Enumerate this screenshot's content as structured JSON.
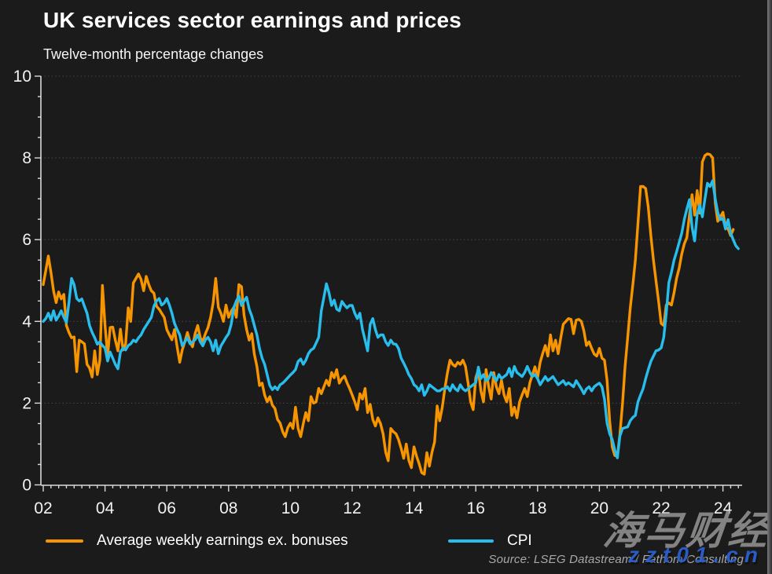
{
  "header": {
    "title": "UK services sector earnings and prices",
    "subtitle": "Twelve-month percentage changes"
  },
  "legend": [
    {
      "label": "Average weekly earnings ex. bonuses",
      "color": "#f79500"
    },
    {
      "label": "CPI",
      "color": "#29bdec"
    }
  ],
  "source": "Source: LSEG Datastream / Fathom Consulting",
  "watermark": {
    "line1": "海马财经",
    "line2": "zzt01.cn"
  },
  "colors": {
    "background": "#1b1b1c",
    "axis": "#d9d9d9",
    "grid": "#5a5a5a",
    "tick_label": "#f2f2f2",
    "earnings_line": "#f79500",
    "cpi_line": "#29bdec",
    "source_text": "#a9a9a9",
    "watermark_gray": "#9b9b9b",
    "watermark_blue": "#2d63d4"
  },
  "chart_data": {
    "type": "line",
    "title": "UK services sector earnings and prices",
    "subtitle": "Twelve-month percentage changes",
    "xlabel": "",
    "ylabel": "",
    "xlim": [
      2001.82,
      2024.62
    ],
    "ylim": [
      0,
      10
    ],
    "grid": "horizontal-dotted-at-major-yticks",
    "legend_position": "bottom",
    "yticks": {
      "major": [
        0,
        2,
        4,
        6,
        8,
        10
      ],
      "minor_step": 0.5
    },
    "xticks": {
      "major_years": [
        2002,
        2004,
        2006,
        2008,
        2010,
        2012,
        2014,
        2016,
        2018,
        2020,
        2022,
        2024
      ],
      "labels": [
        "02",
        "04",
        "06",
        "08",
        "10",
        "12",
        "14",
        "16",
        "18",
        "20",
        "22",
        "24"
      ],
      "minor_step_years": 0.25
    },
    "x_start": 2002.0,
    "x_step": 0.0833333,
    "series": [
      {
        "name": "Average weekly earnings ex. bonuses",
        "color": "#f79500",
        "values": [
          4.9,
          5.25,
          5.6,
          5.2,
          4.75,
          4.46,
          4.72,
          4.55,
          4.66,
          3.9,
          3.73,
          3.6,
          3.62,
          2.77,
          3.54,
          3.5,
          3.45,
          2.95,
          2.86,
          2.64,
          3.28,
          2.7,
          3.05,
          4.88,
          3.9,
          3.15,
          3.85,
          3.86,
          3.54,
          3.28,
          3.81,
          3.3,
          3.45,
          4.33,
          4.0,
          4.94,
          5.05,
          5.16,
          5.03,
          4.75,
          5.1,
          4.9,
          4.75,
          4.69,
          4.37,
          4.3,
          4.2,
          4.1,
          3.8,
          3.67,
          3.55,
          3.8,
          3.38,
          3.0,
          3.3,
          3.5,
          3.73,
          3.5,
          3.38,
          3.7,
          3.9,
          3.6,
          3.5,
          3.7,
          3.85,
          4.1,
          4.45,
          5.05,
          4.35,
          4.2,
          4.0,
          4.4,
          4.1,
          4.25,
          4.34,
          4.1,
          4.9,
          4.85,
          4.16,
          3.8,
          3.54,
          3.7,
          3.2,
          2.9,
          2.43,
          2.49,
          2.2,
          2.03,
          2.16,
          1.95,
          1.87,
          1.6,
          1.51,
          1.3,
          1.18,
          1.4,
          1.51,
          1.38,
          1.9,
          1.38,
          1.18,
          1.5,
          1.77,
          1.57,
          2.16,
          2.0,
          2.03,
          2.36,
          2.23,
          2.4,
          2.56,
          2.43,
          2.75,
          2.62,
          2.82,
          2.49,
          2.6,
          2.66,
          2.5,
          2.36,
          2.2,
          2.03,
          1.84,
          2.23,
          2.1,
          2.36,
          1.77,
          1.97,
          1.6,
          1.44,
          1.64,
          1.5,
          1.25,
          0.8,
          0.59,
          1.38,
          1.3,
          1.25,
          1.11,
          0.9,
          0.65,
          1.0,
          0.6,
          0.42,
          0.93,
          0.7,
          0.52,
          0.3,
          0.26,
          0.79,
          0.46,
          0.8,
          1.05,
          1.93,
          1.57,
          1.9,
          2.36,
          2.75,
          3.05,
          2.95,
          2.9,
          3.0,
          2.95,
          3.05,
          2.9,
          2.49,
          2.03,
          1.84,
          2.62,
          2.82,
          2.3,
          2.03,
          2.82,
          2.4,
          2.1,
          2.75,
          2.4,
          2.23,
          2.56,
          2.2,
          2.03,
          2.36,
          1.7,
          1.9,
          1.64,
          2.03,
          2.2,
          2.36,
          2.16,
          2.5,
          2.69,
          2.89,
          2.62,
          3.0,
          3.21,
          3.41,
          3.15,
          3.67,
          3.28,
          3.54,
          3.21,
          3.6,
          3.93,
          4.0,
          4.07,
          4.05,
          3.7,
          4.03,
          4.05,
          4.0,
          3.77,
          3.41,
          3.5,
          3.34,
          3.2,
          3.15,
          3.34,
          3.1,
          3.05,
          2.56,
          1.57,
          0.93,
          0.72,
          0.7,
          1.25,
          2.0,
          2.9,
          3.6,
          4.33,
          4.9,
          5.5,
          6.4,
          7.3,
          7.3,
          7.25,
          6.8,
          6.1,
          5.5,
          5.0,
          4.5,
          3.95,
          3.9,
          4.4,
          4.45,
          4.4,
          4.7,
          5.05,
          5.3,
          5.65,
          5.9,
          6.05,
          6.6,
          7.1,
          6.6,
          7.2,
          6.65,
          7.9,
          8.06,
          8.1,
          8.08,
          8.0,
          6.9,
          6.45,
          6.55,
          6.67,
          6.3,
          6.27,
          6.1,
          6.25
        ]
      },
      {
        "name": "CPI",
        "color": "#29bdec",
        "values": [
          4.0,
          4.07,
          4.2,
          4.03,
          4.26,
          4.03,
          4.13,
          4.26,
          4.1,
          3.97,
          4.46,
          5.05,
          4.9,
          4.56,
          4.5,
          4.55,
          4.37,
          4.2,
          3.9,
          3.73,
          3.6,
          3.44,
          3.5,
          3.41,
          3.35,
          3.03,
          3.25,
          3.1,
          2.95,
          2.84,
          3.25,
          3.35,
          3.3,
          3.41,
          3.45,
          3.54,
          3.5,
          3.6,
          3.67,
          3.8,
          3.9,
          4.0,
          4.1,
          4.37,
          4.5,
          4.56,
          4.4,
          4.45,
          4.56,
          4.4,
          4.2,
          3.95,
          3.8,
          3.67,
          3.4,
          3.5,
          3.6,
          3.45,
          3.5,
          3.55,
          3.67,
          3.5,
          3.4,
          3.55,
          3.61,
          3.5,
          3.28,
          3.54,
          3.21,
          3.4,
          3.5,
          3.61,
          3.7,
          3.93,
          4.33,
          4.5,
          4.62,
          4.39,
          4.5,
          4.59,
          4.3,
          4.13,
          3.9,
          3.67,
          3.34,
          3.1,
          2.95,
          2.69,
          2.43,
          2.33,
          2.4,
          2.33,
          2.45,
          2.49,
          2.55,
          2.62,
          2.69,
          2.75,
          2.82,
          3.02,
          3.08,
          2.95,
          3.05,
          3.21,
          3.3,
          3.34,
          3.47,
          3.61,
          4.26,
          4.59,
          4.92,
          4.7,
          4.39,
          4.52,
          4.3,
          4.26,
          4.49,
          4.4,
          4.33,
          4.39,
          4.39,
          4.2,
          4.07,
          4.2,
          3.8,
          3.54,
          3.28,
          3.93,
          4.07,
          3.8,
          3.61,
          3.67,
          3.67,
          3.5,
          3.41,
          3.54,
          3.45,
          3.44,
          3.34,
          3.1,
          2.98,
          2.85,
          2.7,
          2.6,
          2.45,
          2.4,
          2.3,
          2.45,
          2.19,
          2.3,
          2.45,
          2.4,
          2.35,
          2.3,
          2.3,
          2.35,
          2.35,
          2.4,
          2.3,
          2.45,
          2.35,
          2.3,
          2.45,
          2.35,
          2.3,
          2.35,
          2.4,
          2.45,
          2.5,
          2.88,
          2.6,
          2.7,
          2.55,
          2.6,
          2.75,
          2.65,
          2.55,
          2.7,
          2.6,
          2.65,
          2.7,
          2.85,
          2.65,
          2.9,
          2.75,
          2.7,
          2.65,
          2.75,
          2.9,
          2.75,
          2.65,
          2.7,
          2.6,
          2.45,
          2.55,
          2.65,
          2.55,
          2.6,
          2.65,
          2.55,
          2.45,
          2.5,
          2.55,
          2.45,
          2.5,
          2.45,
          2.4,
          2.55,
          2.45,
          2.35,
          2.23,
          2.35,
          2.4,
          2.3,
          2.4,
          2.45,
          2.49,
          2.4,
          2.1,
          1.51,
          1.25,
          1.11,
          0.85,
          0.66,
          1.2,
          1.38,
          1.4,
          1.42,
          1.57,
          1.65,
          1.7,
          2.03,
          2.2,
          2.36,
          2.6,
          2.82,
          3.02,
          3.15,
          3.28,
          3.3,
          3.35,
          3.61,
          4.2,
          4.95,
          5.2,
          5.5,
          5.7,
          5.93,
          6.16,
          6.5,
          6.75,
          6.98,
          6.3,
          5.97,
          6.62,
          6.85,
          6.56,
          7.0,
          7.38,
          7.3,
          7.44,
          7.0,
          6.66,
          6.49,
          6.52,
          6.26,
          6.49,
          6.16,
          6.0,
          5.85,
          5.78
        ]
      }
    ]
  }
}
